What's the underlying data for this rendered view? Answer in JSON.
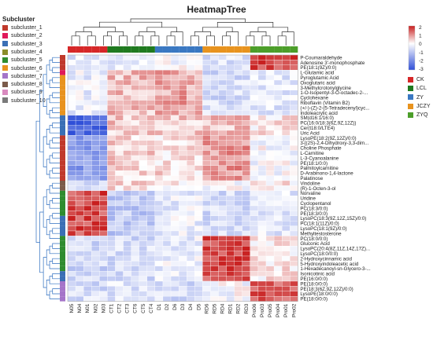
{
  "chart_data": {
    "type": "heatmap",
    "title": "HeatmapTree",
    "subcluster_legend": {
      "title": "Subcluster",
      "items": [
        {
          "label": "subcluster_1",
          "color": "#c0392b"
        },
        {
          "label": "subcluster_2",
          "color": "#e0195a"
        },
        {
          "label": "subcluster_3",
          "color": "#3a6fb5"
        },
        {
          "label": "subcluster_4",
          "color": "#8a8d2a"
        },
        {
          "label": "subcluster_5",
          "color": "#2f8c2f"
        },
        {
          "label": "subcluster_6",
          "color": "#e8931e"
        },
        {
          "label": "subcluster_7",
          "color": "#a574c9"
        },
        {
          "label": "subcluster_8",
          "color": "#7b5b4a"
        },
        {
          "label": "subcluster_9",
          "color": "#d98abf"
        },
        {
          "label": "subcluster_10",
          "color": "#7a7a7a"
        }
      ]
    },
    "color_scale": {
      "ticks": [
        2,
        1,
        0,
        -1,
        -2,
        -3
      ],
      "high": "#c81e1e",
      "mid": "#ffffff",
      "low": "#2f4fd8",
      "min": -3,
      "max": 2
    },
    "group_legend": [
      {
        "label": "CK",
        "color": "#d62728"
      },
      {
        "label": "LCL",
        "color": "#1f7a1f"
      },
      {
        "label": "ZY",
        "color": "#3a78c2"
      },
      {
        "label": "JCZY",
        "color": "#e8931e"
      },
      {
        "label": "ZYQ",
        "color": "#4c9e2a"
      }
    ],
    "columns": [
      "N05",
      "N04",
      "N01",
      "N02",
      "N03",
      "CT1",
      "CT2",
      "CT3",
      "CT6",
      "CT5",
      "CT4",
      "D1",
      "D2",
      "D6",
      "D3",
      "D4",
      "D5",
      "RD6",
      "RD5",
      "RD4",
      "RD1",
      "RD2",
      "RD3",
      "Pro06",
      "Pro03",
      "Pro05",
      "Pro04",
      "Pro01",
      "Pro02"
    ],
    "column_groups": [
      "CK",
      "CK",
      "CK",
      "CK",
      "CK",
      "LCL",
      "LCL",
      "LCL",
      "LCL",
      "LCL",
      "LCL",
      "ZY",
      "ZY",
      "ZY",
      "ZY",
      "ZY",
      "ZY",
      "JCZY",
      "JCZY",
      "JCZY",
      "JCZY",
      "JCZY",
      "JCZY",
      "ZYQ",
      "ZYQ",
      "ZYQ",
      "ZYQ",
      "ZYQ",
      "ZYQ"
    ],
    "rows": [
      "P-Coumaraldehyde",
      "Adenosine 3'-monophosphate",
      "PE(18:1(9Z)/0:0)",
      "L-Glutamic acid",
      "Pyroglutamic Acid",
      "Oxoglutaric acid",
      "3-Methylcrotonylglycine",
      "1-O-Isopentyl-3-O-octadec-2-...",
      "Cyclohexane",
      "Riboflavin (Vitamin B2)",
      "(+/-)-(Z)-2-(5-Tetradecenyl)cyc...",
      "Indoleacrylic acid",
      "SM(d16:1/16:0)",
      "PC(16:0/18:3(6Z,9Z,12Z))",
      "Cer(t18:0/LTE4)",
      "Uric Acid",
      "LysoPE(18:2(9Z,12Z)/0:0)",
      "3-[(2S)-2,4-Dihydroxy-3,3-dim...",
      "Choline Phosphate",
      "L-Carnitine",
      "L-3-Cyanoalanine",
      "PE(18:1/0:0)",
      "Palmitoylcarnitine",
      "D-Arabinono-1,4-lactone",
      "Palatinose",
      "Vindoline",
      "(R)-1-Octen-3-ol",
      "Norvaline",
      "Uridine",
      "Cyclopentanol",
      "PC(18:3/0:0)",
      "PE(18:3/0:0)",
      "LysoPC(18:3(9Z,12Z,15Z)/0:0)",
      "PC(18:1(11Z)/0:0)",
      "LysoPC(18:1(9Z)/0:0)",
      "Methyltestosterone",
      "PC(18:0/0:0)",
      "Gluconic Acid",
      "LysoPC(20:4(8Z,11Z,14Z,17Z)...",
      "LysoPC(18:0/0:0)",
      "2-Hydroxycinnamic acid",
      "5-Hydroxyindoleacetic acid",
      "1-Hexadecanoyl-sn-Glycero-3-...",
      "Isonicotinic acid",
      "PE(16:0/0:0)",
      "PE(18:0/0:0)",
      "PE(18:3(6Z,9Z,12Z)/0:0)",
      "LysoPE(18:0/0:0)",
      "PE(18:0/0:0)"
    ],
    "row_subclusters": [
      1,
      1,
      1,
      2,
      6,
      6,
      6,
      6,
      6,
      6,
      6,
      6,
      3,
      3,
      3,
      3,
      1,
      1,
      1,
      1,
      1,
      1,
      1,
      1,
      1,
      8,
      8,
      5,
      5,
      5,
      5,
      5,
      3,
      3,
      3,
      3,
      5,
      5,
      5,
      5,
      5,
      5,
      5,
      3,
      3,
      7,
      7,
      7,
      7
    ],
    "row_blocks": [
      {
        "rows": [
          0,
          2
        ],
        "pattern": [
          -0.4,
          -0.4,
          -0.1,
          -0.5,
          1.6
        ]
      },
      {
        "rows": [
          3,
          11
        ],
        "pattern": [
          -0.3,
          0.6,
          0.8,
          -0.6,
          -0.4
        ]
      },
      {
        "rows": [
          12,
          15
        ],
        "pattern": [
          -2.6,
          0.5,
          0.5,
          0.6,
          0.2
        ]
      },
      {
        "rows": [
          16,
          24
        ],
        "pattern": [
          -1.7,
          0.4,
          0.3,
          0.9,
          -0.1
        ]
      },
      {
        "rows": [
          25,
          26
        ],
        "pattern": [
          -0.8,
          0.3,
          0.1,
          0.0,
          0.2
        ]
      },
      {
        "rows": [
          27,
          35
        ],
        "pattern": [
          1.6,
          -0.9,
          -0.3,
          -0.6,
          -0.4
        ]
      },
      {
        "rows": [
          36,
          44
        ],
        "pattern": [
          -0.7,
          -0.6,
          -0.3,
          1.6,
          0.2
        ]
      },
      {
        "rows": [
          45,
          48
        ],
        "pattern": [
          -0.6,
          -0.5,
          -0.6,
          -0.1,
          1.5
        ]
      }
    ]
  }
}
